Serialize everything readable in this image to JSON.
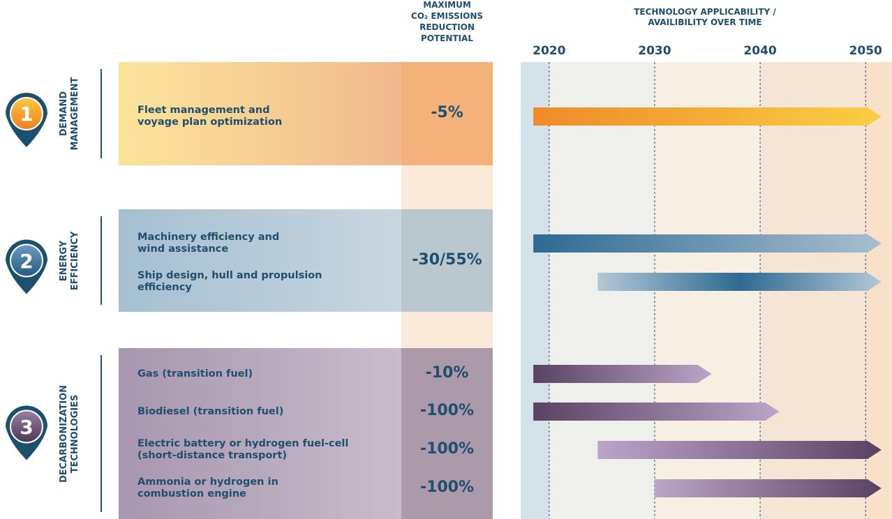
{
  "headers": {
    "reduction": [
      "MAXIMUM",
      "CO₂ EMISSIONS",
      "REDUCTION",
      "POTENTIAL"
    ],
    "timeline": [
      "TECHNOLOGY APPLICABILITY /",
      "AVAILIBILITY OVER TIME"
    ]
  },
  "timeline": {
    "xlim": [
      2017.3,
      2052.5
    ],
    "xticks": [
      2020,
      2030,
      2040,
      2050
    ]
  },
  "groups": [
    {
      "number": "1",
      "label": [
        "DEMAND",
        "MANAGEMENT"
      ],
      "reduction": "-5%",
      "items": [
        {
          "label": [
            "Fleet management and",
            "voyage plan optimization"
          ],
          "start": 2018.5,
          "end": 2051.5
        }
      ]
    },
    {
      "number": "2",
      "label": [
        "ENERGY",
        "EFFICIENCY"
      ],
      "reduction": "-30/55%",
      "items": [
        {
          "label": [
            "Machinery efficiency and",
            "wind assistance"
          ],
          "start": 2018.5,
          "end": 2051.5
        },
        {
          "label": [
            "Ship design, hull and propulsion",
            "efficiency"
          ],
          "start": 2024.6,
          "end": 2051.5
        }
      ]
    },
    {
      "number": "3",
      "label": [
        "DECARBONIZATION",
        "TECHNOLOGIES"
      ],
      "items": [
        {
          "label": [
            "Gas (transition fuel)"
          ],
          "reduction": "-10%",
          "start": 2018.5,
          "end": 2035.4
        },
        {
          "label": [
            "Biodiesel (transition fuel)"
          ],
          "reduction": "-100%",
          "start": 2018.5,
          "end": 2041.8
        },
        {
          "label": [
            "Electric battery or hydrogen fuel-cell",
            "(short-distance transport)"
          ],
          "reduction": "-100%",
          "start": 2024.6,
          "end": 2051.5
        },
        {
          "label": [
            "Ammonia or hydrogen in",
            "combustion engine"
          ],
          "reduction": "-100%",
          "start": 2030,
          "end": 2051.5
        }
      ]
    }
  ]
}
